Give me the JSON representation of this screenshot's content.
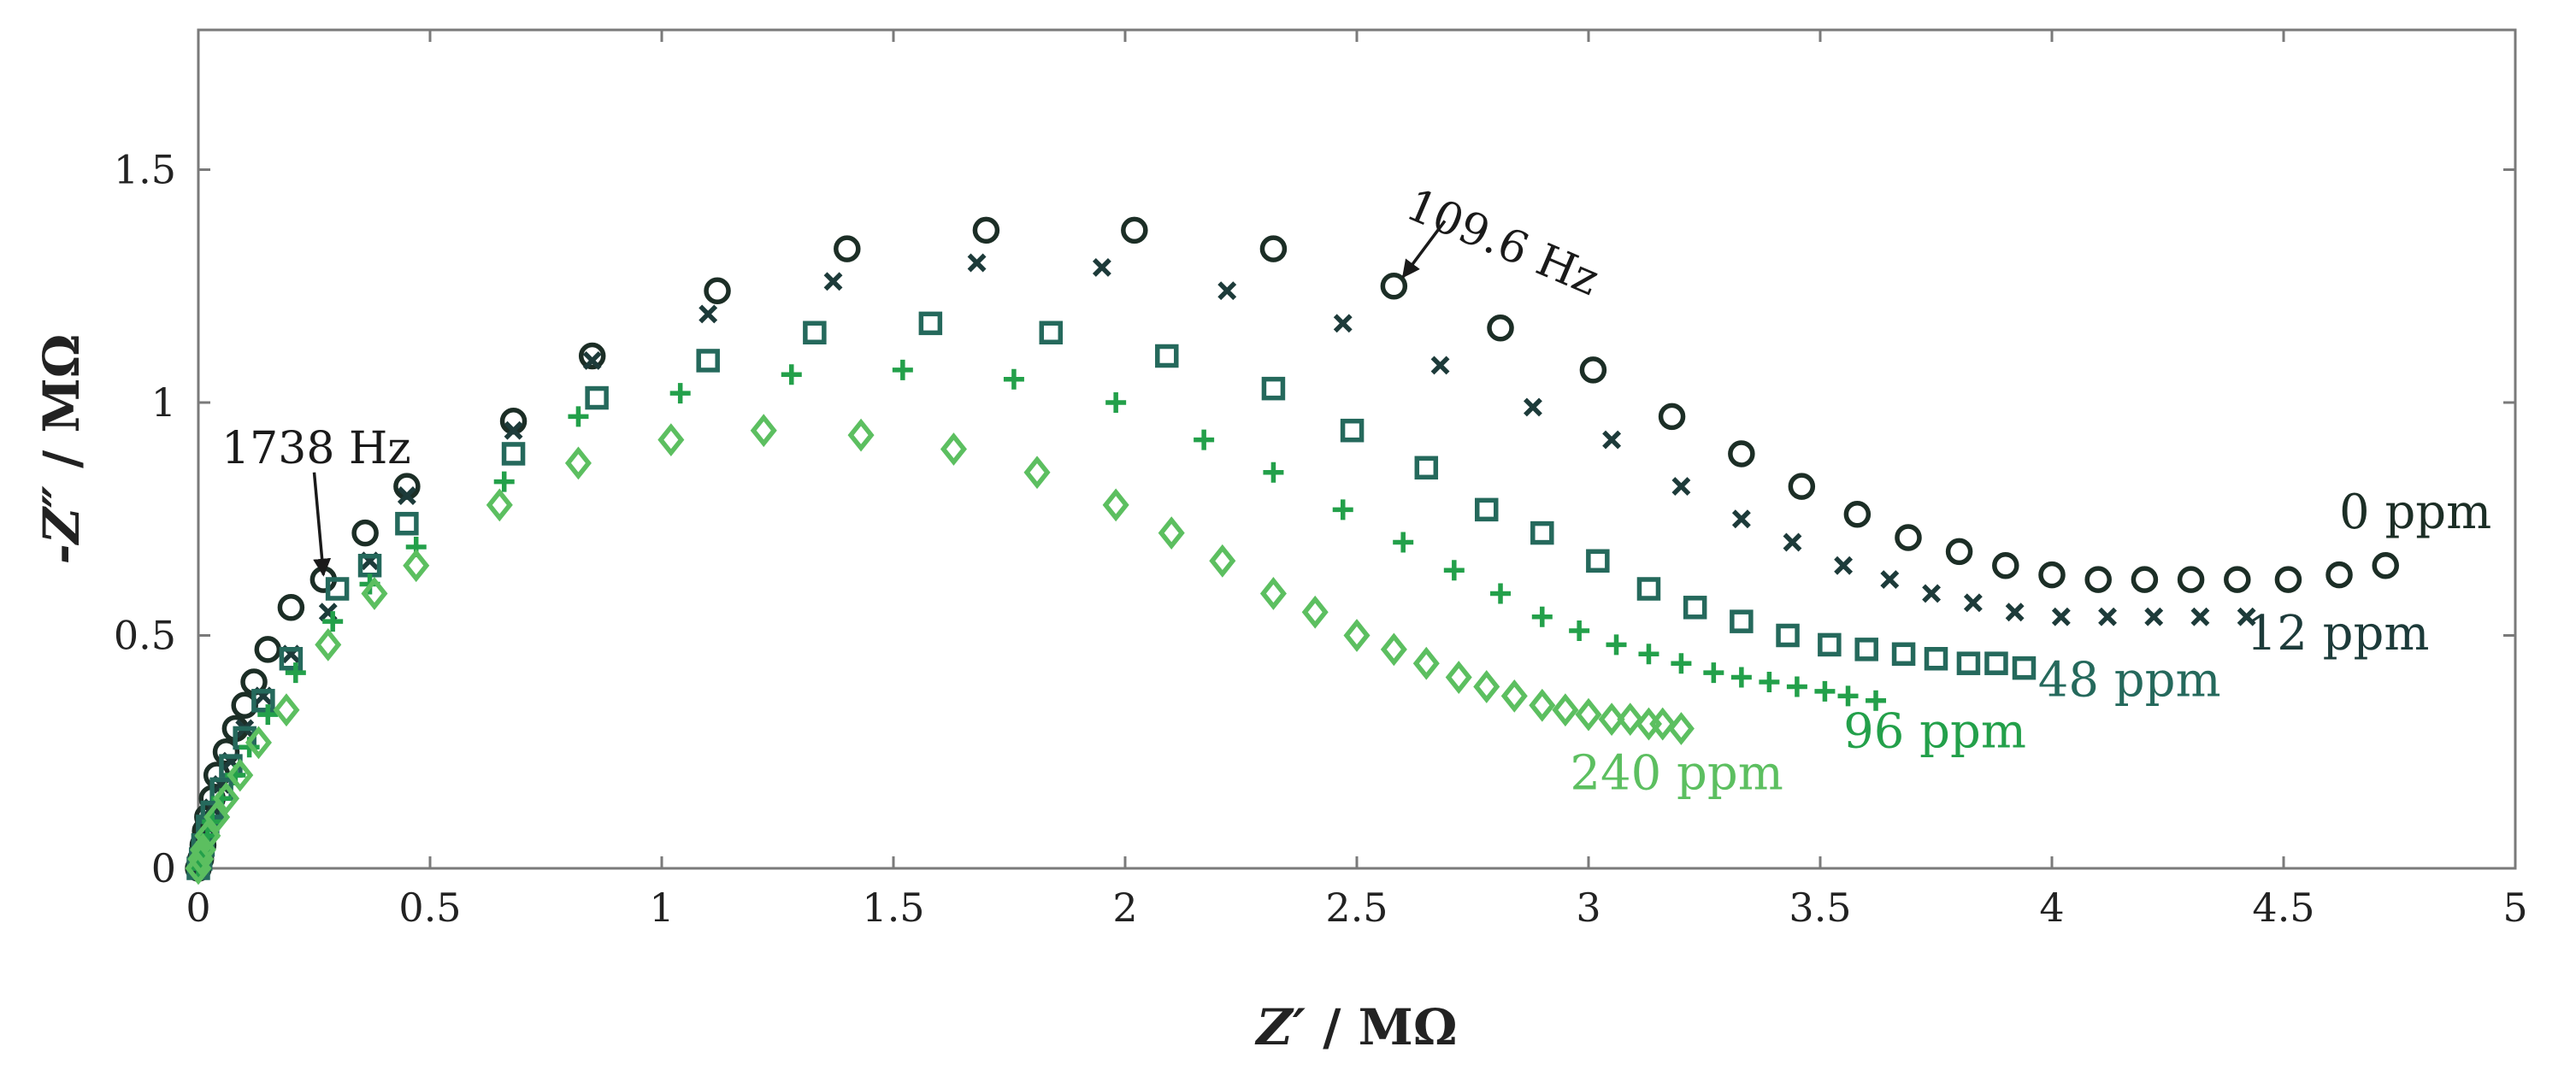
{
  "chart_data": {
    "type": "scatter",
    "title": "",
    "xlabel_var": "Z′",
    "xlabel_unit": " / MΩ",
    "ylabel_var": "-Z″",
    "ylabel_unit": " / MΩ",
    "xlim": [
      0,
      5
    ],
    "ylim": [
      0,
      1.8
    ],
    "xticks": [
      0,
      0.5,
      1,
      1.5,
      2,
      2.5,
      3,
      3.5,
      4,
      4.5,
      5
    ],
    "xtick_labels": [
      "0",
      "0.5",
      "1",
      "1.5",
      "2",
      "2.5",
      "3",
      "3.5",
      "4",
      "4.5",
      "5"
    ],
    "yticks": [
      0,
      0.5,
      1,
      1.5
    ],
    "ytick_labels": [
      "0",
      "0.5",
      "1",
      "1.5"
    ],
    "grid": false,
    "series": [
      {
        "name": "0 ppm",
        "marker": "circle",
        "color": "#1c2e26",
        "x": [
          0.0,
          0.005,
          0.01,
          0.015,
          0.02,
          0.03,
          0.04,
          0.06,
          0.08,
          0.1,
          0.12,
          0.15,
          0.2,
          0.27,
          0.36,
          0.45,
          0.68,
          0.85,
          1.12,
          1.4,
          1.7,
          2.02,
          2.32,
          2.58,
          2.81,
          3.01,
          3.18,
          3.33,
          3.46,
          3.58,
          3.69,
          3.8,
          3.9,
          4.0,
          4.1,
          4.2,
          4.3,
          4.4,
          4.51,
          4.62,
          4.72
        ],
        "y": [
          0.0,
          0.02,
          0.05,
          0.08,
          0.11,
          0.15,
          0.2,
          0.25,
          0.3,
          0.35,
          0.4,
          0.47,
          0.56,
          0.62,
          0.72,
          0.82,
          0.96,
          1.1,
          1.24,
          1.33,
          1.37,
          1.37,
          1.33,
          1.25,
          1.16,
          1.07,
          0.97,
          0.89,
          0.82,
          0.76,
          0.71,
          0.68,
          0.65,
          0.63,
          0.62,
          0.62,
          0.62,
          0.62,
          0.62,
          0.63,
          0.65
        ]
      },
      {
        "name": "12 ppm",
        "marker": "x",
        "color": "#1d3b3a",
        "x": [
          0.0,
          0.005,
          0.01,
          0.02,
          0.03,
          0.05,
          0.07,
          0.1,
          0.14,
          0.2,
          0.28,
          0.37,
          0.45,
          0.68,
          0.85,
          1.1,
          1.37,
          1.68,
          1.95,
          2.22,
          2.47,
          2.68,
          2.88,
          3.05,
          3.2,
          3.33,
          3.44,
          3.55,
          3.65,
          3.74,
          3.83,
          3.92,
          4.02,
          4.12,
          4.22,
          4.32,
          4.42
        ],
        "y": [
          0.0,
          0.02,
          0.05,
          0.09,
          0.13,
          0.18,
          0.23,
          0.3,
          0.37,
          0.46,
          0.55,
          0.66,
          0.8,
          0.94,
          1.09,
          1.19,
          1.26,
          1.3,
          1.29,
          1.24,
          1.17,
          1.08,
          0.99,
          0.92,
          0.82,
          0.75,
          0.7,
          0.65,
          0.62,
          0.59,
          0.57,
          0.55,
          0.54,
          0.54,
          0.54,
          0.54,
          0.54
        ]
      },
      {
        "name": "48 ppm",
        "marker": "square",
        "color": "#25695c",
        "x": [
          0.0,
          0.005,
          0.01,
          0.02,
          0.03,
          0.05,
          0.07,
          0.1,
          0.14,
          0.2,
          0.3,
          0.37,
          0.45,
          0.68,
          0.86,
          1.1,
          1.33,
          1.58,
          1.84,
          2.09,
          2.32,
          2.49,
          2.65,
          2.78,
          2.9,
          3.02,
          3.13,
          3.23,
          3.33,
          3.43,
          3.52,
          3.6,
          3.68,
          3.75,
          3.82,
          3.88,
          3.94
        ],
        "y": [
          0.0,
          0.02,
          0.05,
          0.09,
          0.12,
          0.17,
          0.22,
          0.28,
          0.36,
          0.45,
          0.6,
          0.65,
          0.74,
          0.89,
          1.01,
          1.09,
          1.15,
          1.17,
          1.15,
          1.1,
          1.03,
          0.94,
          0.86,
          0.77,
          0.72,
          0.66,
          0.6,
          0.56,
          0.53,
          0.5,
          0.48,
          0.47,
          0.46,
          0.45,
          0.44,
          0.44,
          0.43
        ]
      },
      {
        "name": "96 ppm",
        "marker": "plus",
        "color": "#23a04a",
        "x": [
          0.0,
          0.005,
          0.01,
          0.02,
          0.03,
          0.05,
          0.08,
          0.11,
          0.15,
          0.21,
          0.29,
          0.37,
          0.47,
          0.66,
          0.82,
          1.04,
          1.28,
          1.52,
          1.76,
          1.98,
          2.17,
          2.32,
          2.47,
          2.6,
          2.71,
          2.81,
          2.9,
          2.98,
          3.06,
          3.13,
          3.2,
          3.27,
          3.33,
          3.39,
          3.45,
          3.51,
          3.56,
          3.62
        ],
        "y": [
          0.0,
          0.02,
          0.04,
          0.07,
          0.1,
          0.15,
          0.2,
          0.26,
          0.33,
          0.42,
          0.53,
          0.61,
          0.69,
          0.83,
          0.97,
          1.02,
          1.06,
          1.07,
          1.05,
          1.0,
          0.92,
          0.85,
          0.77,
          0.7,
          0.64,
          0.59,
          0.54,
          0.51,
          0.48,
          0.46,
          0.44,
          0.42,
          0.41,
          0.4,
          0.39,
          0.38,
          0.37,
          0.36
        ]
      },
      {
        "name": "240 ppm",
        "marker": "diamond",
        "color": "#5cbf60",
        "x": [
          0.0,
          0.005,
          0.01,
          0.02,
          0.04,
          0.06,
          0.09,
          0.13,
          0.19,
          0.28,
          0.38,
          0.47,
          0.65,
          0.82,
          1.02,
          1.22,
          1.43,
          1.63,
          1.81,
          1.98,
          2.1,
          2.21,
          2.32,
          2.41,
          2.5,
          2.58,
          2.65,
          2.72,
          2.78,
          2.84,
          2.9,
          2.95,
          3.0,
          3.05,
          3.09,
          3.13,
          3.16,
          3.2
        ],
        "y": [
          0.0,
          0.02,
          0.04,
          0.07,
          0.11,
          0.15,
          0.2,
          0.27,
          0.34,
          0.48,
          0.59,
          0.65,
          0.78,
          0.87,
          0.92,
          0.94,
          0.93,
          0.9,
          0.85,
          0.78,
          0.72,
          0.66,
          0.59,
          0.55,
          0.5,
          0.47,
          0.44,
          0.41,
          0.39,
          0.37,
          0.35,
          0.34,
          0.33,
          0.32,
          0.32,
          0.31,
          0.31,
          0.3
        ]
      }
    ],
    "series_labels": [
      {
        "text": "0 ppm",
        "x": 4.62,
        "y": 0.73,
        "color": "#1c2e26"
      },
      {
        "text": "12 ppm",
        "x": 4.42,
        "y": 0.47,
        "color": "#1d3b3a"
      },
      {
        "text": "48 ppm",
        "x": 3.97,
        "y": 0.37,
        "color": "#25695c"
      },
      {
        "text": "96 ppm",
        "x": 3.55,
        "y": 0.26,
        "color": "#23a04a"
      },
      {
        "text": "240 ppm",
        "x": 2.96,
        "y": 0.17,
        "color": "#5cbf60"
      }
    ],
    "annotations": [
      {
        "text": "1738 Hz",
        "text_x": 0.05,
        "text_y": 0.87,
        "arrow_from_x": 0.25,
        "arrow_from_y": 0.85,
        "arrow_to_x": 0.27,
        "arrow_to_y": 0.63
      },
      {
        "text": "109.6 Hz",
        "text_x": 2.6,
        "text_y": 1.4,
        "rotation_deg": 23,
        "arrow_from_x": 2.69,
        "arrow_from_y": 1.39,
        "arrow_to_x": 2.6,
        "arrow_to_y": 1.27
      }
    ]
  }
}
